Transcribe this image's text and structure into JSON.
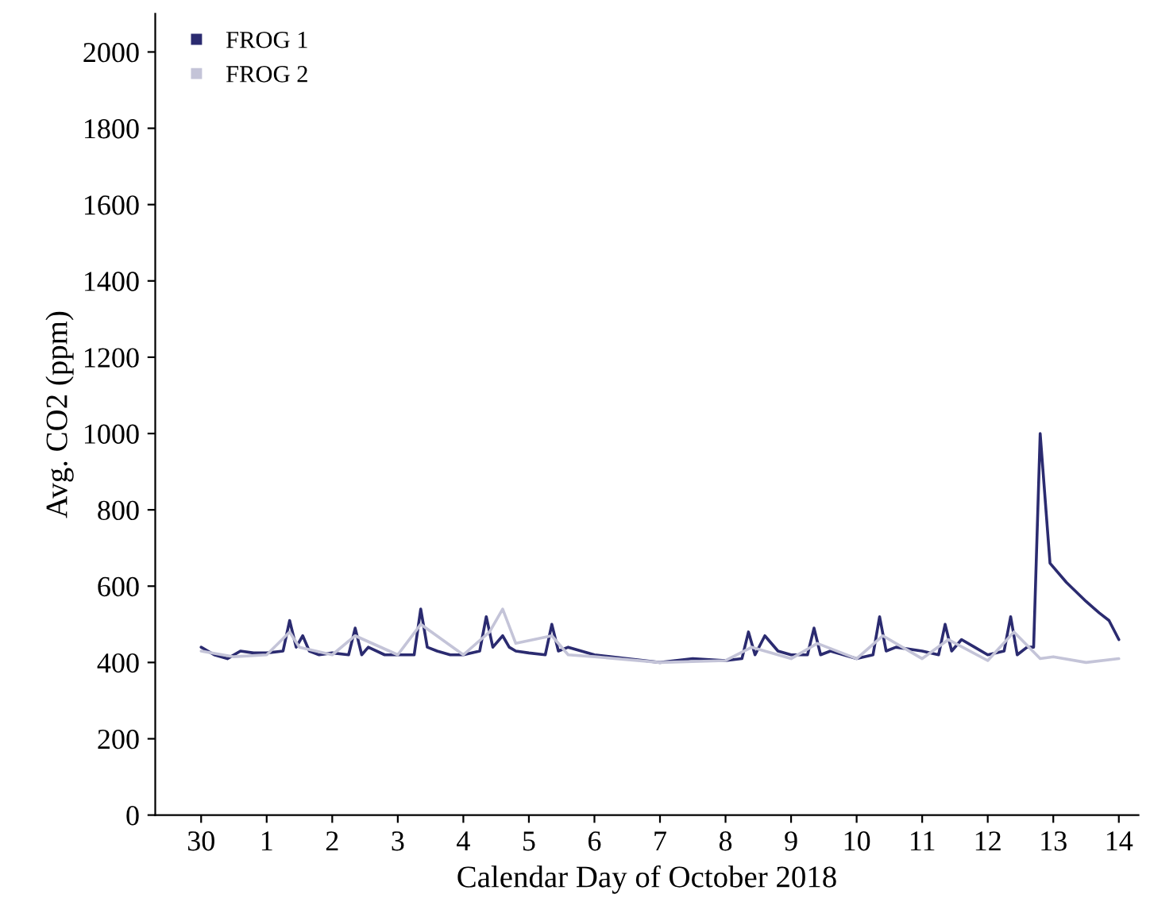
{
  "chart_data": {
    "type": "line",
    "xlabel": "Calendar Day of October 2018",
    "ylabel": "Avg. CO2 (ppm)",
    "xlim": [
      "2018-09-29T07:12",
      "2018-10-14T07:12"
    ],
    "xticks": [
      {
        "value": "2018-09-30",
        "label": "30"
      },
      {
        "value": "2018-10-01",
        "label": "1"
      },
      {
        "value": "2018-10-02",
        "label": "2"
      },
      {
        "value": "2018-10-03",
        "label": "3"
      },
      {
        "value": "2018-10-04",
        "label": "4"
      },
      {
        "value": "2018-10-05",
        "label": "5"
      },
      {
        "value": "2018-10-06",
        "label": "6"
      },
      {
        "value": "2018-10-07",
        "label": "7"
      },
      {
        "value": "2018-10-08",
        "label": "8"
      },
      {
        "value": "2018-10-09",
        "label": "9"
      },
      {
        "value": "2018-10-10",
        "label": "10"
      },
      {
        "value": "2018-10-11",
        "label": "11"
      },
      {
        "value": "2018-10-12",
        "label": "12"
      },
      {
        "value": "2018-10-13",
        "label": "13"
      },
      {
        "value": "2018-10-14",
        "label": "14"
      }
    ],
    "ylim": [
      0,
      2100
    ],
    "yticks": [
      0,
      200,
      400,
      600,
      800,
      1000,
      1200,
      1400,
      1600,
      1800,
      2000
    ],
    "grid": false,
    "legend": "top left",
    "series": [
      {
        "name": "FROG 1",
        "color": "#2b2b70",
        "x": [
          "2018-09-30T00:00",
          "2018-09-30T04:48",
          "2018-09-30T09:36",
          "2018-09-30T14:24",
          "2018-09-30T19:12",
          "2018-10-01T00:00",
          "2018-10-01T06:00",
          "2018-10-01T08:24",
          "2018-10-01T10:48",
          "2018-10-01T13:12",
          "2018-10-01T15:36",
          "2018-10-01T19:12",
          "2018-10-02T00:00",
          "2018-10-02T06:00",
          "2018-10-02T08:24",
          "2018-10-02T10:48",
          "2018-10-02T13:12",
          "2018-10-02T19:12",
          "2018-10-03T00:00",
          "2018-10-03T06:00",
          "2018-10-03T08:24",
          "2018-10-03T10:48",
          "2018-10-03T14:24",
          "2018-10-03T19:12",
          "2018-10-04T00:00",
          "2018-10-04T06:00",
          "2018-10-04T08:24",
          "2018-10-04T10:48",
          "2018-10-04T14:24",
          "2018-10-04T16:48",
          "2018-10-04T19:12",
          "2018-10-05T00:00",
          "2018-10-05T06:00",
          "2018-10-05T08:24",
          "2018-10-05T10:48",
          "2018-10-05T14:24",
          "2018-10-06T00:00",
          "2018-10-06T12:00",
          "2018-10-07T00:00",
          "2018-10-07T12:00",
          "2018-10-08T00:00",
          "2018-10-08T06:00",
          "2018-10-08T08:24",
          "2018-10-08T10:48",
          "2018-10-08T14:24",
          "2018-10-08T19:12",
          "2018-10-09T00:00",
          "2018-10-09T06:00",
          "2018-10-09T08:24",
          "2018-10-09T10:48",
          "2018-10-09T14:24",
          "2018-10-10T00:00",
          "2018-10-10T06:00",
          "2018-10-10T08:24",
          "2018-10-10T10:48",
          "2018-10-10T14:24",
          "2018-10-11T00:00",
          "2018-10-11T06:00",
          "2018-10-11T08:24",
          "2018-10-11T10:48",
          "2018-10-11T14:24",
          "2018-10-11T19:12",
          "2018-10-12T00:00",
          "2018-10-12T06:00",
          "2018-10-12T08:24",
          "2018-10-12T10:48",
          "2018-10-12T14:24",
          "2018-10-12T16:48",
          "2018-10-12T19:12",
          "2018-10-12T22:48",
          "2018-10-13T04:48",
          "2018-10-13T12:00",
          "2018-10-13T16:48",
          "2018-10-13T20:24",
          "2018-10-14T00:00"
        ],
        "values": [
          440,
          420,
          410,
          430,
          425,
          425,
          430,
          510,
          440,
          470,
          430,
          420,
          425,
          420,
          490,
          420,
          440,
          420,
          420,
          420,
          540,
          440,
          430,
          420,
          420,
          430,
          520,
          440,
          470,
          440,
          430,
          425,
          420,
          500,
          430,
          440,
          420,
          410,
          400,
          410,
          405,
          410,
          480,
          420,
          470,
          430,
          420,
          420,
          490,
          420,
          430,
          410,
          420,
          520,
          430,
          440,
          430,
          420,
          500,
          430,
          460,
          440,
          420,
          430,
          520,
          420,
          440,
          440,
          1000,
          660,
          610,
          560,
          530,
          510,
          460
        ]
      },
      {
        "name": "FROG 2",
        "color": "#c4c4d8",
        "x": [
          "2018-09-30T00:00",
          "2018-09-30T12:00",
          "2018-10-01T00:00",
          "2018-10-01T08:24",
          "2018-10-01T12:00",
          "2018-10-02T00:00",
          "2018-10-02T08:24",
          "2018-10-03T00:00",
          "2018-10-03T08:24",
          "2018-10-04T00:00",
          "2018-10-04T09:36",
          "2018-10-04T14:24",
          "2018-10-04T19:12",
          "2018-10-05T08:24",
          "2018-10-05T14:24",
          "2018-10-06T00:00",
          "2018-10-07T00:00",
          "2018-10-08T00:00",
          "2018-10-08T09:36",
          "2018-10-09T00:00",
          "2018-10-09T09:36",
          "2018-10-10T00:00",
          "2018-10-10T09:36",
          "2018-10-11T00:00",
          "2018-10-11T09:36",
          "2018-10-12T00:00",
          "2018-10-12T09:36",
          "2018-10-12T19:12",
          "2018-10-13T00:00",
          "2018-10-13T12:00",
          "2018-10-14T00:00"
        ],
        "values": [
          430,
          415,
          420,
          480,
          440,
          420,
          470,
          420,
          500,
          420,
          480,
          540,
          450,
          470,
          420,
          415,
          400,
          405,
          440,
          410,
          450,
          410,
          470,
          410,
          460,
          405,
          480,
          410,
          415,
          400,
          410
        ]
      }
    ]
  }
}
